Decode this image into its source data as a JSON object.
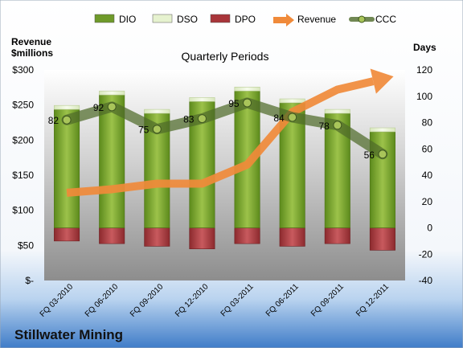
{
  "legend": {
    "items": [
      {
        "label": "DIO",
        "color": "#6f9a2a",
        "marker": "bar"
      },
      {
        "label": "DSO",
        "color": "#e6f2cf",
        "marker": "bar"
      },
      {
        "label": "DPO",
        "color": "#a8353a",
        "marker": "bar"
      },
      {
        "label": "Revenue",
        "color": "#f08a3a",
        "marker": "arrow"
      },
      {
        "label": "CCC",
        "color": "#4f6b2a",
        "marker": "line-dot"
      }
    ]
  },
  "chart_data": {
    "type": "bar",
    "title": "Quarterly Periods",
    "left_axis_label": [
      "Revenue",
      "$millions"
    ],
    "right_axis_label": "Days",
    "company": "Stillwater Mining",
    "categories": [
      "FQ 03-2010",
      "FQ 06-2010",
      "FQ 09-2010",
      "FQ 12-2010",
      "FQ 03-2011",
      "FQ 06-2011",
      "FQ 09-2011",
      "FQ 12-2011"
    ],
    "series": [
      {
        "name": "DIO",
        "axis": "right",
        "stack": "positive",
        "values": [
          90,
          101,
          87,
          96,
          104,
          95,
          87,
          73
        ]
      },
      {
        "name": "DSO",
        "axis": "right",
        "stack": "positive",
        "values": [
          3,
          3,
          3,
          3,
          3,
          3,
          3,
          3
        ]
      },
      {
        "name": "DPO",
        "axis": "right",
        "stack": "negative",
        "values": [
          -10,
          -12,
          -14,
          -16,
          -12,
          -14,
          -12,
          -17
        ]
      },
      {
        "name": "Revenue",
        "axis": "left",
        "type": "line-arrow",
        "values": [
          125,
          130,
          138,
          138,
          165,
          240,
          272,
          287
        ]
      },
      {
        "name": "CCC",
        "axis": "right",
        "type": "line",
        "values": [
          82,
          92,
          75,
          83,
          95,
          84,
          78,
          56
        ]
      }
    ],
    "ccc_labels": [
      "82",
      "92",
      "75",
      "83",
      "95",
      "84",
      "78",
      "56"
    ],
    "left_axis": {
      "ylim": [
        0,
        300
      ],
      "ticks": [
        "$-",
        "$50",
        "$100",
        "$150",
        "$200",
        "$250",
        "$300"
      ]
    },
    "right_axis": {
      "ylim": [
        -40,
        120
      ],
      "ticks": [
        "-40",
        "-20",
        "0",
        "20",
        "40",
        "60",
        "80",
        "100",
        "120"
      ]
    },
    "grid": false,
    "legend_position": "top"
  }
}
